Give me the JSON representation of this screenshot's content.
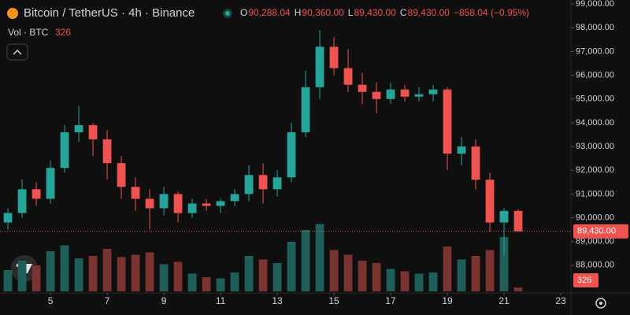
{
  "header": {
    "symbol": "Bitcoin / TetherUS · 4h · Binance",
    "ohlc": [
      {
        "key": "O",
        "value": "90,288.04"
      },
      {
        "key": "H",
        "value": "90,360.00"
      },
      {
        "key": "L",
        "value": "89,430.00"
      },
      {
        "key": "C",
        "value": "89,430.00"
      }
    ],
    "change": "−858.04 (−0.95%)",
    "volume_label": "Vol · BTC",
    "volume_value": "326",
    "last_price": "89,430.00"
  },
  "chart_data": {
    "type": "candlestick",
    "x": [
      3.5,
      4,
      4.5,
      5,
      5.5,
      6,
      6.5,
      7,
      7.5,
      8,
      8.5,
      9,
      9.5,
      10,
      10.5,
      11,
      11.5,
      12,
      12.5,
      13,
      13.5,
      14,
      14.5,
      15,
      15.5,
      16,
      16.5,
      17,
      17.5,
      18,
      18.5,
      19,
      19.5,
      20,
      20.5,
      21,
      21.5
    ],
    "open": [
      89800,
      90200,
      91200,
      90800,
      92100,
      93600,
      93900,
      93300,
      92300,
      91300,
      90800,
      90400,
      91000,
      90200,
      90600,
      90500,
      90700,
      91000,
      91800,
      91200,
      91700,
      93600,
      95500,
      97200,
      96300,
      95600,
      95300,
      95000,
      95400,
      95100,
      95200,
      95400,
      92700,
      93000,
      91600,
      89800,
      90288.04
    ],
    "high": [
      90400,
      91600,
      91500,
      92400,
      93900,
      94700,
      94000,
      93700,
      92600,
      91700,
      91200,
      91300,
      91100,
      90800,
      90800,
      90800,
      91200,
      92200,
      92300,
      92000,
      94000,
      96200,
      97900,
      97600,
      97100,
      96100,
      95700,
      95700,
      95600,
      95500,
      95600,
      95500,
      93400,
      93300,
      91900,
      90400,
      90360
    ],
    "low": [
      89500,
      90000,
      90500,
      90600,
      91900,
      93200,
      92600,
      91600,
      90800,
      90300,
      89500,
      90100,
      89800,
      90000,
      90300,
      90200,
      90500,
      90700,
      90600,
      90900,
      91500,
      93400,
      95000,
      96000,
      95300,
      94800,
      94400,
      94800,
      94900,
      94900,
      94900,
      92000,
      92200,
      91200,
      89400,
      88400,
      89430
    ],
    "close": [
      90200,
      91200,
      90800,
      92100,
      93600,
      93900,
      93300,
      92300,
      91300,
      90800,
      90400,
      91000,
      90200,
      90600,
      90500,
      90700,
      91000,
      91800,
      91200,
      91700,
      93600,
      95500,
      97200,
      96300,
      95600,
      95300,
      95000,
      95400,
      95100,
      95200,
      95400,
      92700,
      93000,
      91600,
      89800,
      90288.04,
      89430
    ],
    "volume": [
      1800,
      2600,
      2200,
      3400,
      3900,
      2800,
      3000,
      3600,
      2900,
      3100,
      3300,
      2300,
      2500,
      1500,
      1200,
      1100,
      1600,
      3000,
      2700,
      2400,
      4200,
      5200,
      5700,
      3500,
      3100,
      2600,
      2400,
      1900,
      1700,
      1500,
      1600,
      3800,
      2700,
      3000,
      3500,
      4600,
      326
    ],
    "up_color": "#26a69a",
    "down_color": "#ef5350",
    "up_volume_color": "#1f5f59",
    "down_volume_color": "#7b3330",
    "xlim": [
      3.22,
      23.36
    ],
    "xticks": [
      5,
      7,
      9,
      11,
      13,
      15,
      17,
      19,
      21,
      23
    ],
    "ylim": [
      86900,
      99170
    ],
    "yticks": [
      {
        "value": 88000,
        "label": "88,000.00"
      },
      {
        "value": 89000,
        "label": "89,000.00"
      },
      {
        "value": 90000,
        "label": "90,000.00"
      },
      {
        "value": 91000,
        "label": "91,000.00"
      },
      {
        "value": 92000,
        "label": "92,000.00"
      },
      {
        "value": 93000,
        "label": "93,000.00"
      },
      {
        "value": 94000,
        "label": "94,000.00"
      },
      {
        "value": 95000,
        "label": "95,000.00"
      },
      {
        "value": 96000,
        "label": "96,000.00"
      },
      {
        "value": 97000,
        "label": "97,000.00"
      },
      {
        "value": 98000,
        "label": "98,000.00"
      },
      {
        "value": 99000,
        "label": "99,000.00"
      }
    ],
    "volume_lim": [
      0,
      6000
    ]
  }
}
